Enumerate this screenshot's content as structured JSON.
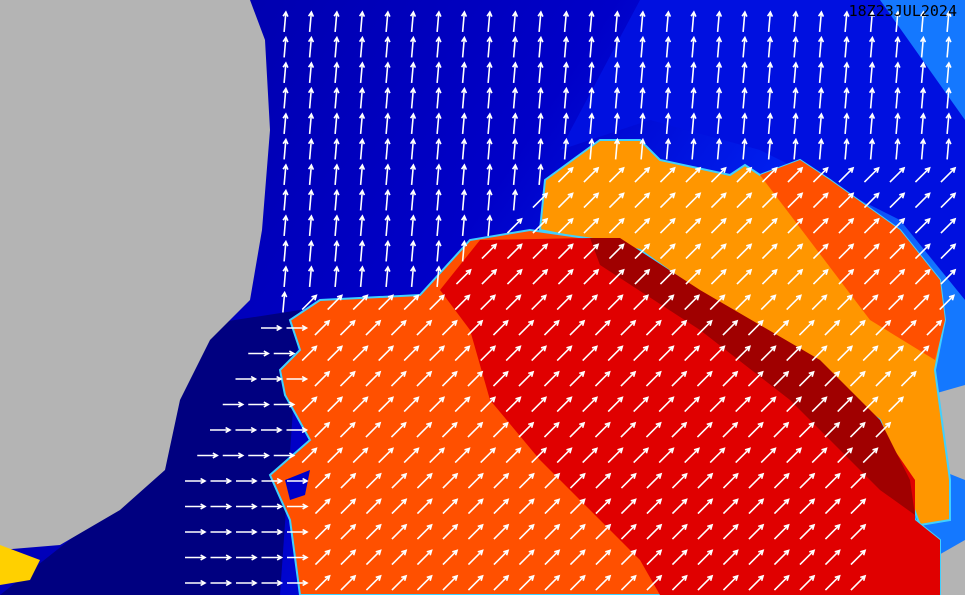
{
  "map": {
    "timestamp": "18Z23JUL2024",
    "colors": {
      "land": "#b4b4b4",
      "ocean_deep_blue": "#0000a0",
      "ocean_blue": "#0010e0",
      "ocean_light_blue": "#1478ff",
      "orange_light": "#ff9600",
      "orange": "#ff5000",
      "red": "#e00000",
      "dark_red": "#a00000",
      "yellow": "#ffd000",
      "arrow": "#ffffff"
    },
    "arrow_directions": {
      "open_ocean_north": "north",
      "swell_zone": "north-east",
      "coastal_channel": "east"
    }
  }
}
